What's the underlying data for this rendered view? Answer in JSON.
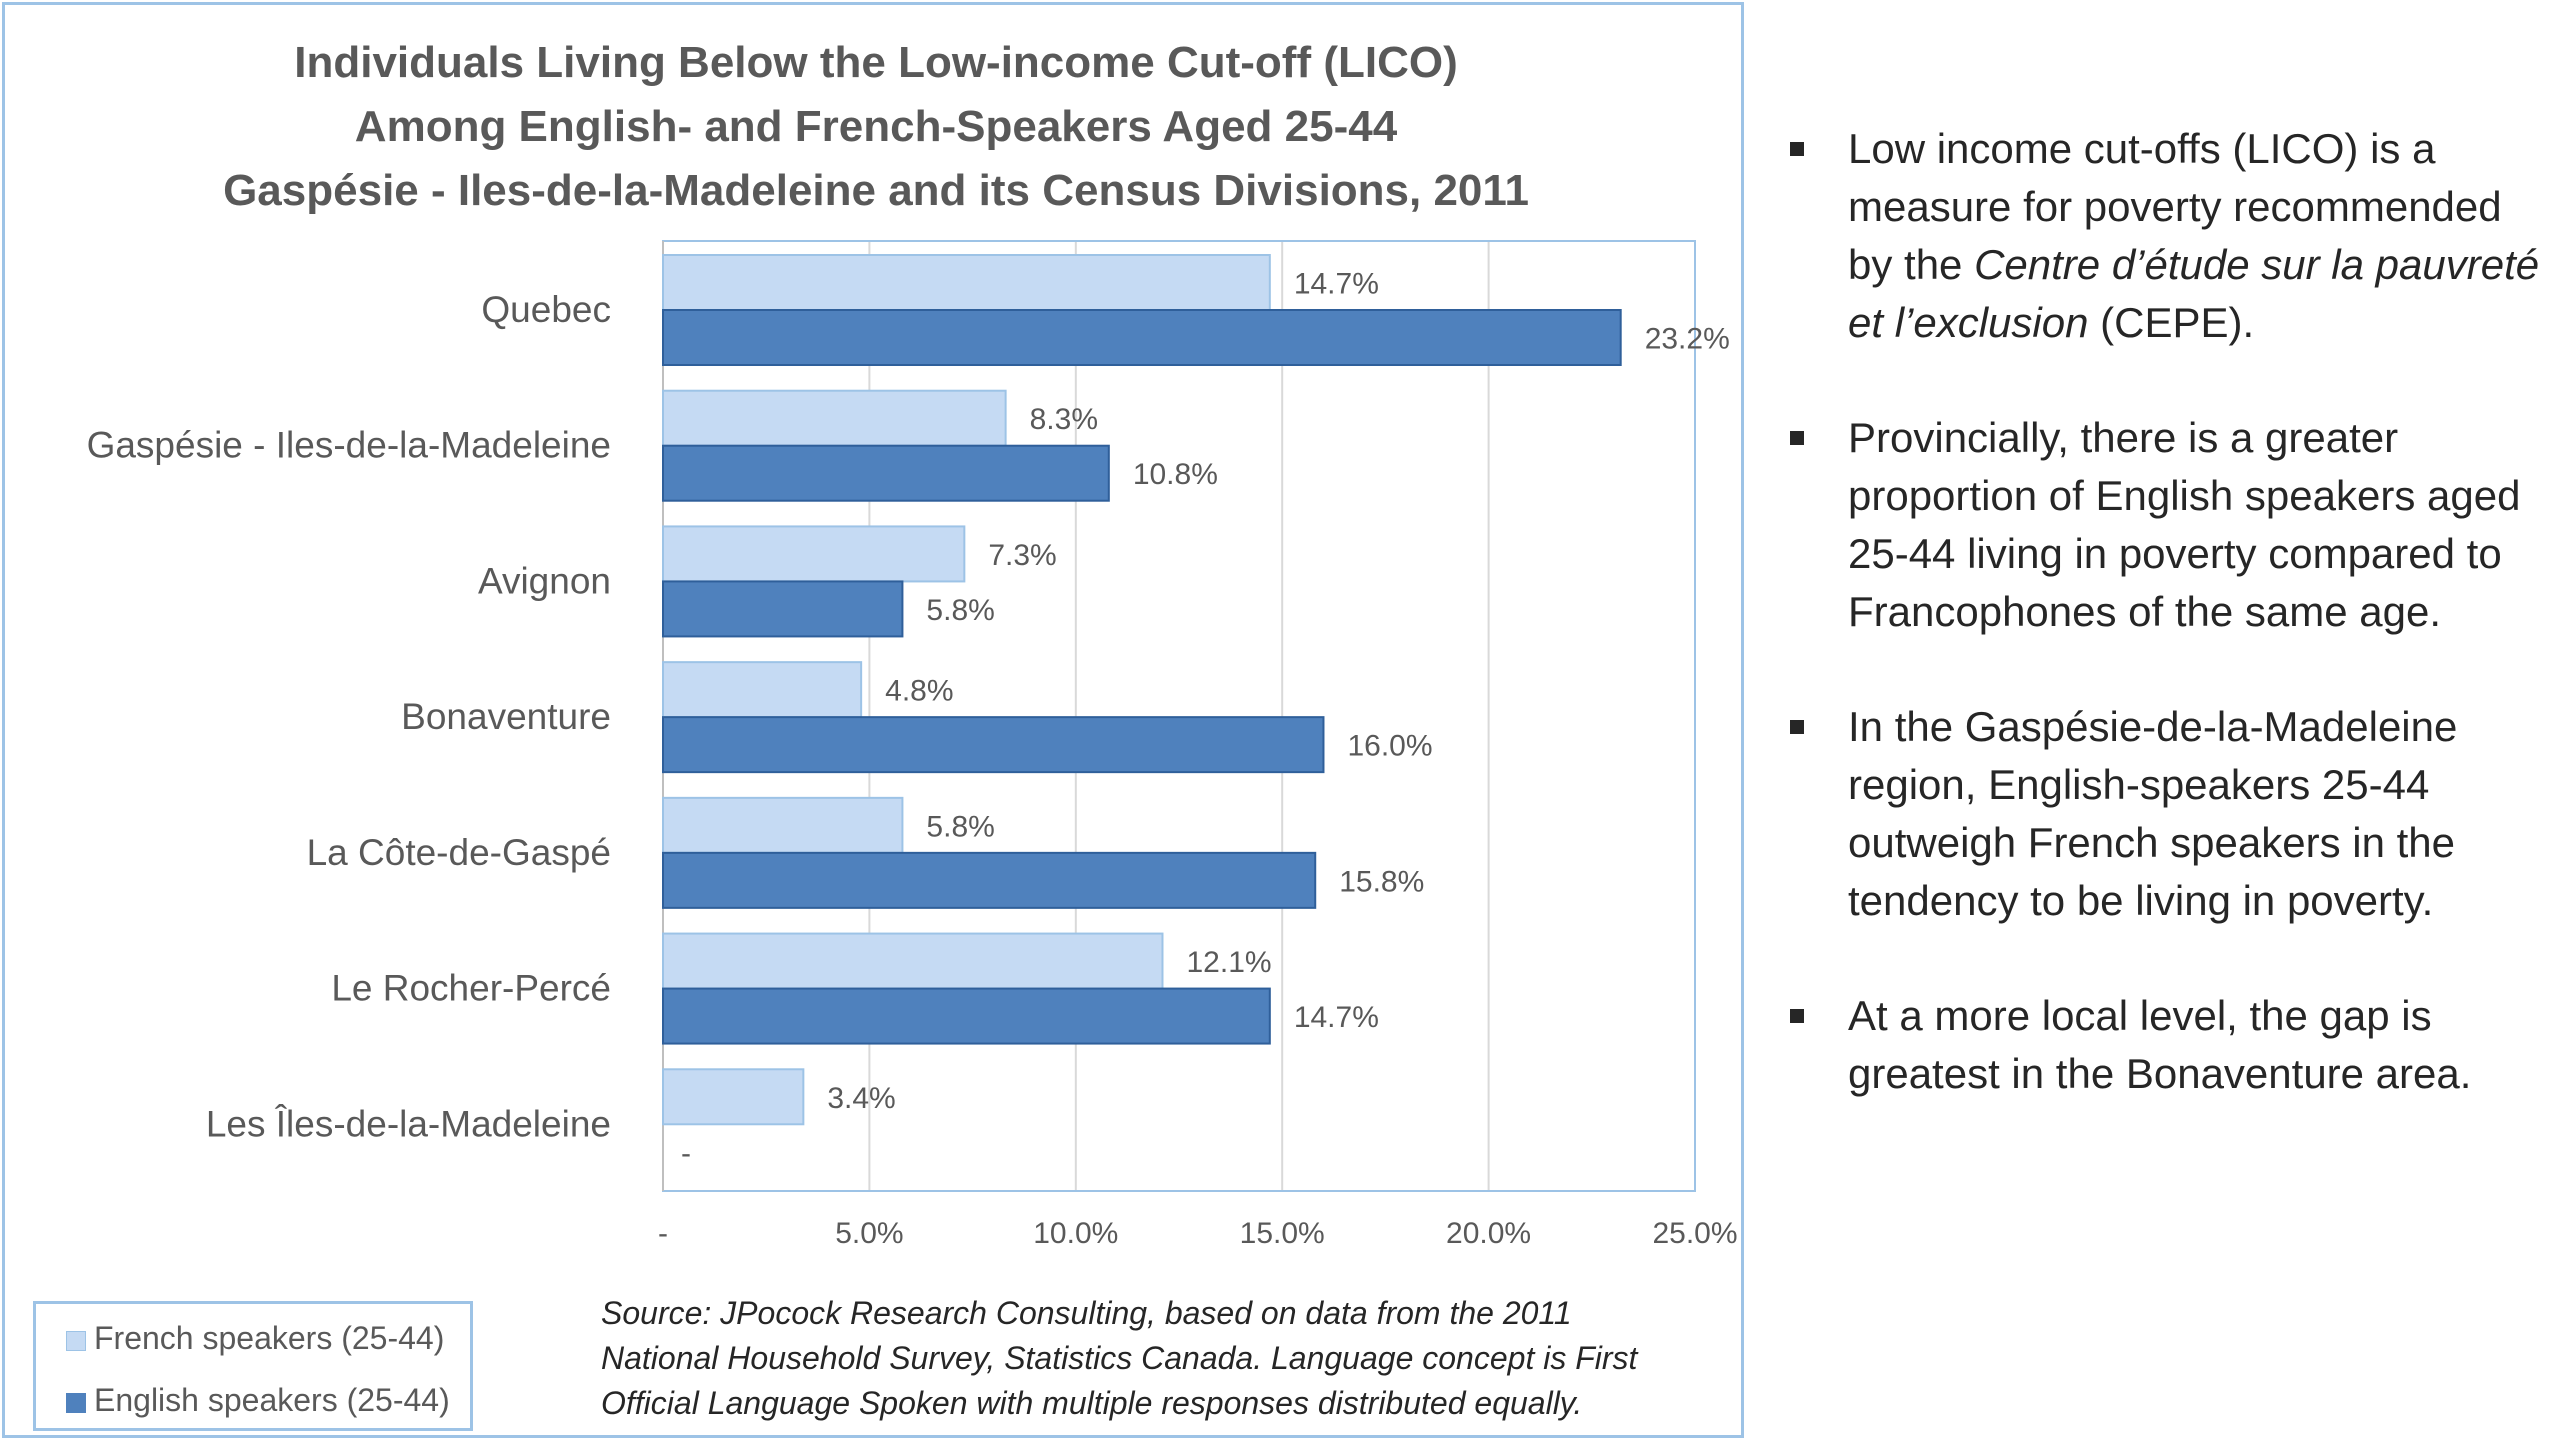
{
  "chart_title": [
    "Individuals Living Below the Low-income Cut-off (LICO)",
    "Among English- and French-Speakers Aged 25-44",
    "Gaspésie - Iles-de-la-Madeleine and its Census Divisions, 2011"
  ],
  "chart_data": {
    "type": "bar",
    "orientation": "horizontal",
    "title": "Individuals Living Below the Low-income Cut-off (LICO) Among English- and French-Speakers Aged 25-44 Gaspésie - Iles-de-la-Madeleine and its Census Divisions, 2011",
    "categories": [
      "Quebec",
      "Gaspésie - Iles-de-la-Madeleine",
      "Avignon",
      "Bonaventure",
      "La Côte-de-Gaspé",
      "Le Rocher-Percé",
      "Les Îles-de-la-Madeleine"
    ],
    "series": [
      {
        "name": "French speakers (25-44)",
        "color": "#c5daf3",
        "values": [
          14.7,
          8.3,
          7.3,
          4.8,
          5.8,
          12.1,
          3.4
        ],
        "labels": [
          "14.7%",
          "8.3%",
          "7.3%",
          "4.8%",
          "5.8%",
          "12.1%",
          "3.4%"
        ]
      },
      {
        "name": "English speakers (25-44)",
        "color": "#4f81bd",
        "values": [
          23.2,
          10.8,
          5.8,
          16.0,
          15.8,
          14.7,
          0
        ],
        "labels": [
          "23.2%",
          "10.8%",
          "5.8%",
          "16.0%",
          "15.8%",
          "14.7%",
          "-"
        ]
      }
    ],
    "xlim": [
      0,
      25
    ],
    "ticks": [
      "-",
      "5.0%",
      "10.0%",
      "15.0%",
      "20.0%",
      "25.0%"
    ],
    "xlabel": "",
    "ylabel": "",
    "grid": true,
    "legend_position": "bottom-left"
  },
  "legend": [
    {
      "label": "French speakers (25-44)",
      "color": "#c5daf3"
    },
    {
      "label": "English speakers (25-44)",
      "color": "#4f81bd"
    }
  ],
  "source_note": [
    "Source: JPocock Research Consulting, based on data from the 2011",
    "National Household Survey, Statistics Canada. Language concept is First",
    "Official Language Spoken with multiple responses distributed equally."
  ],
  "bullets": [
    {
      "before": "Low income cut-offs (LICO) is a measure for poverty recommended by the ",
      "italic": "Centre d’étude sur la pauvreté et l’exclusion",
      "after": " (CEPE)."
    },
    {
      "before": "Provincially, there is a greater proportion of English speakers aged 25-44 living in poverty compared to Francophones of the same age.",
      "italic": "",
      "after": ""
    },
    {
      "before": "In the Gaspésie-de-la-Madeleine region, English-speakers 25-44 outweigh French speakers in the tendency to be living in poverty.",
      "italic": "",
      "after": ""
    },
    {
      "before": "At a more local level, the gap is greatest in the Bonaventure area.",
      "italic": "",
      "after": ""
    }
  ]
}
